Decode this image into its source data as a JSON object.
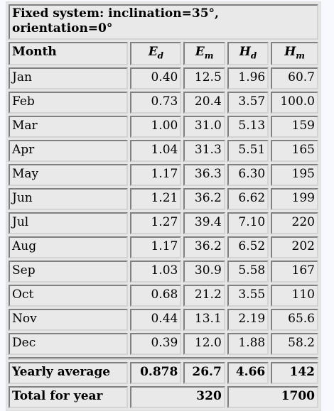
{
  "table": {
    "title": "Fixed system: inclination=35°, orientation=0°",
    "header": [
      "Month",
      {
        "symbol": "E",
        "sub": "d"
      },
      {
        "symbol": "E",
        "sub": "m"
      },
      {
        "symbol": "H",
        "sub": "d"
      },
      {
        "symbol": "H",
        "sub": "m"
      }
    ],
    "rows": [
      [
        "Jan",
        "0.40",
        "12.5",
        "1.96",
        "60.7"
      ],
      [
        "Feb",
        "0.73",
        "20.4",
        "3.57",
        "100.0"
      ],
      [
        "Mar",
        "1.00",
        "31.0",
        "5.13",
        "159"
      ],
      [
        "Apr",
        "1.04",
        "31.3",
        "5.51",
        "165"
      ],
      [
        "May",
        "1.17",
        "36.3",
        "6.30",
        "195"
      ],
      [
        "Jun",
        "1.21",
        "36.2",
        "6.62",
        "199"
      ],
      [
        "Jul",
        "1.27",
        "39.4",
        "7.10",
        "220"
      ],
      [
        "Aug",
        "1.17",
        "36.2",
        "6.52",
        "202"
      ],
      [
        "Sep",
        "1.03",
        "30.9",
        "5.58",
        "167"
      ],
      [
        "Oct",
        "0.68",
        "21.2",
        "3.55",
        "110"
      ],
      [
        "Nov",
        "0.44",
        "13.1",
        "2.19",
        "65.6"
      ],
      [
        "Dec",
        "0.39",
        "12.0",
        "1.88",
        "58.2"
      ]
    ],
    "yearly_average": {
      "label": "Yearly average",
      "values": [
        "0.878",
        "26.7",
        "4.66",
        "142"
      ]
    },
    "total": {
      "label": "Total for year",
      "values": [
        "320",
        "1700"
      ]
    }
  }
}
